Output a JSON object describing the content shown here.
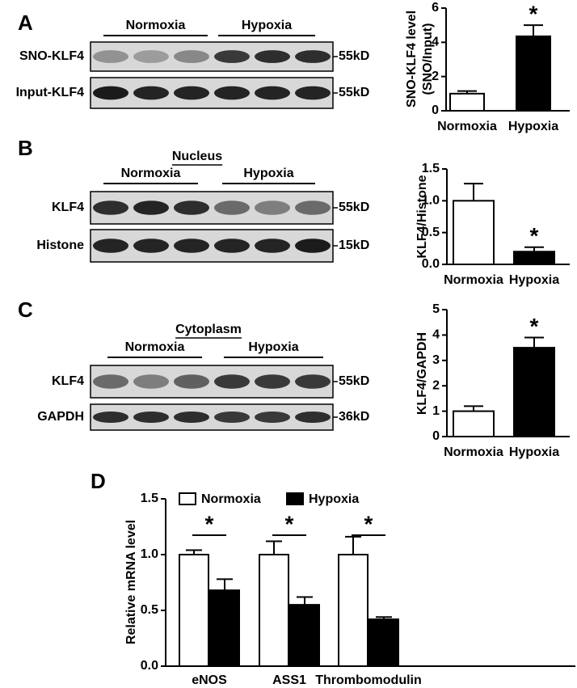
{
  "chart_data": [
    {
      "type": "bar",
      "label": "A",
      "ylabel": [
        "SNO-KLF4 level",
        "(SNO/Input)"
      ],
      "categories": [
        "Normoxia",
        "Hypoxia"
      ],
      "values": [
        1.0,
        4.35
      ],
      "errors": [
        0.15,
        0.65
      ],
      "colors": [
        "#ffffff",
        "#000000"
      ],
      "ylim": [
        0,
        6
      ],
      "yticks": [
        0,
        2,
        4,
        6
      ],
      "annotations": [
        {
          "text": "*",
          "x": "Hypoxia"
        }
      ],
      "blot": {
        "groups": [
          "Normoxia",
          "Hypoxia"
        ],
        "rows": [
          {
            "label": "SNO-KLF4",
            "size": "55kD"
          },
          {
            "label": "Input-KLF4",
            "size": "55kD"
          }
        ]
      }
    },
    {
      "type": "bar",
      "label": "B",
      "ylabel": [
        "KLF4/Histone"
      ],
      "categories": [
        "Normoxia",
        "Hypoxia"
      ],
      "values": [
        1.0,
        0.2
      ],
      "errors": [
        0.27,
        0.07
      ],
      "colors": [
        "#ffffff",
        "#000000"
      ],
      "ylim": [
        0,
        1.5
      ],
      "yticks": [
        {
          "value": 0,
          "label": "0.0"
        },
        0.5,
        {
          "value": 1,
          "label": "1.0"
        },
        1.5
      ],
      "annotations": [
        {
          "text": "*",
          "x": "Hypoxia"
        }
      ],
      "blot": {
        "header": "Nucleus",
        "groups": [
          "Normoxia",
          "Hypoxia"
        ],
        "rows": [
          {
            "label": "KLF4",
            "size": "55kD"
          },
          {
            "label": "Histone",
            "size": "15kD"
          }
        ]
      }
    },
    {
      "type": "bar",
      "label": "C",
      "ylabel": [
        "KLF4/GAPDH"
      ],
      "categories": [
        "Normoxia",
        "Hypoxia"
      ],
      "values": [
        1.0,
        3.5
      ],
      "errors": [
        0.2,
        0.4
      ],
      "colors": [
        "#ffffff",
        "#000000"
      ],
      "ylim": [
        0,
        5
      ],
      "yticks": [
        0,
        1,
        2,
        3,
        4,
        5
      ],
      "annotations": [
        {
          "text": "*",
          "x": "Hypoxia"
        }
      ],
      "blot": {
        "header": "Cytoplasm",
        "groups": [
          "Normoxia",
          "Hypoxia"
        ],
        "rows": [
          {
            "label": "KLF4",
            "size": "55kD"
          },
          {
            "label": "GAPDH",
            "size": "36kD"
          }
        ]
      }
    },
    {
      "type": "grouped_bar",
      "label": "D",
      "ylabel": [
        "Relative mRNA level"
      ],
      "categories": [
        "eNOS",
        "ASS1",
        "Thrombomodulin"
      ],
      "series": [
        {
          "name": "Normoxia",
          "color": "#ffffff",
          "values": [
            1.0,
            1.0,
            1.0
          ],
          "errors": [
            0.04,
            0.12,
            0.16
          ]
        },
        {
          "name": "Hypoxia",
          "color": "#000000",
          "values": [
            0.68,
            0.55,
            0.42
          ],
          "errors": [
            0.1,
            0.07,
            0.02
          ]
        }
      ],
      "ylim": [
        0,
        1.5
      ],
      "yticks": [
        {
          "value": 0,
          "label": "0.0"
        },
        0.5,
        {
          "value": 1,
          "label": "1.0"
        },
        1.5
      ],
      "annotations": [
        {
          "text": "*",
          "x": "eNOS"
        },
        {
          "text": "*",
          "x": "ASS1"
        },
        {
          "text": "*",
          "x": "Thrombomodulin"
        }
      ],
      "legend": "top"
    }
  ]
}
